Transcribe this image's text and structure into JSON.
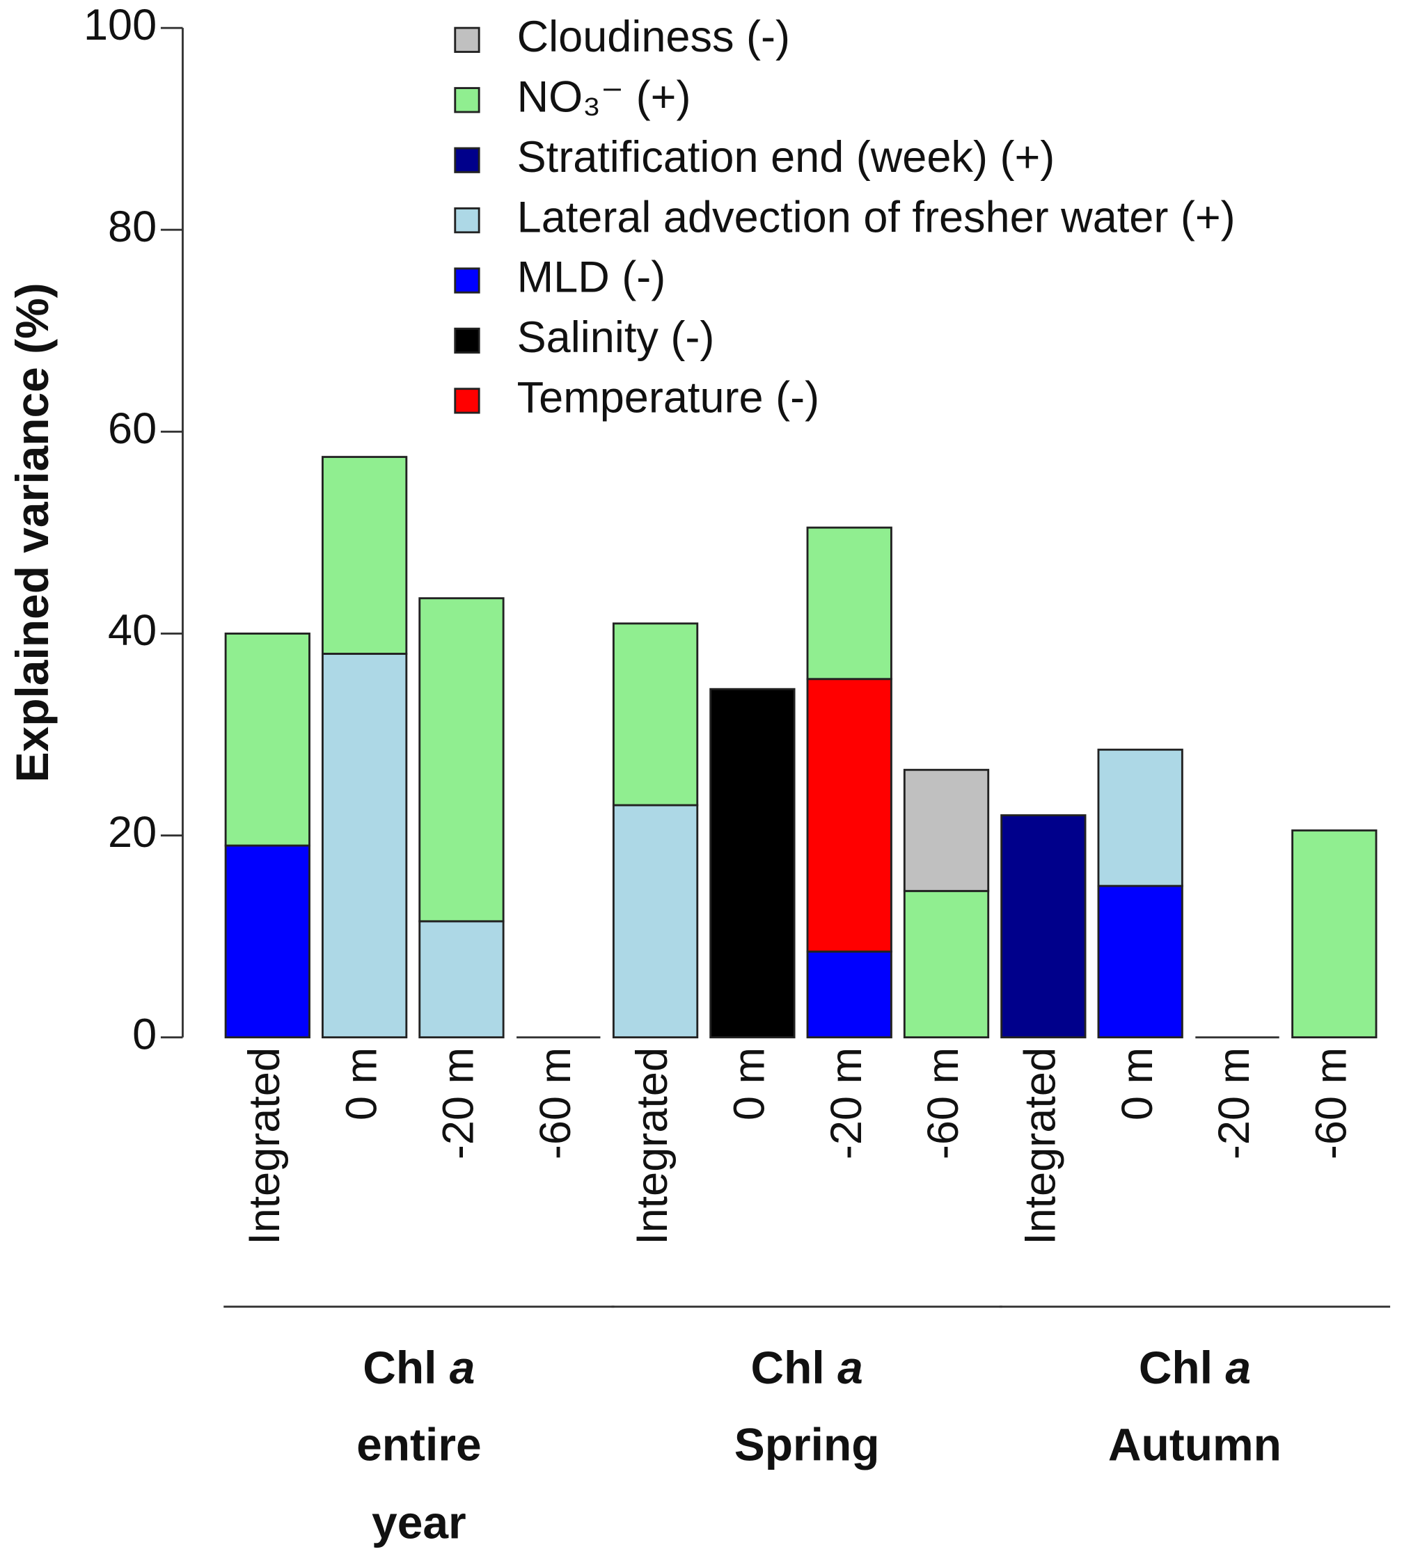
{
  "chart_data": {
    "type": "stacked_bar",
    "ylabel": "Explained variance (%)",
    "categories": [
      "Integrated",
      "0 m",
      "-20 m",
      "-60 m",
      "Integrated",
      "0 m",
      "-20 m",
      "-60 m",
      "Integrated",
      "0 m",
      "-20 m",
      "-60 m"
    ],
    "groups": [
      {
        "name": "Chl",
        "italic": "a",
        "lines": [
          "entire",
          "year"
        ]
      },
      {
        "name": "Chl",
        "italic": "a",
        "lines": [
          "Spring"
        ]
      },
      {
        "name": "Chl",
        "italic": "a",
        "lines": [
          "Autumn"
        ]
      }
    ],
    "series": [
      {
        "name": "Cloudiness (-)",
        "color": "#c0c0c0",
        "values": [
          null,
          null,
          null,
          null,
          null,
          null,
          null,
          12,
          null,
          null,
          null,
          null
        ]
      },
      {
        "name": "NO₃⁻ (+)",
        "color": "#90ee90",
        "values": [
          21,
          19.5,
          32,
          null,
          18,
          null,
          15,
          14.5,
          null,
          null,
          null,
          20.5
        ]
      },
      {
        "name": "Stratification end (week) (+)",
        "color": "#00008b",
        "values": [
          null,
          null,
          null,
          null,
          null,
          null,
          null,
          null,
          22,
          null,
          null,
          null
        ]
      },
      {
        "name": "Lateral advection of fresher water (+)",
        "color": "#add8e6",
        "values": [
          null,
          38,
          11.5,
          null,
          23,
          null,
          null,
          null,
          null,
          13.5,
          null,
          null
        ]
      },
      {
        "name": "MLD (-)",
        "color": "#0000ff",
        "values": [
          19,
          null,
          null,
          null,
          null,
          null,
          8.5,
          null,
          null,
          15,
          null,
          null
        ]
      },
      {
        "name": "Salinity (-)",
        "color": "#000000",
        "values": [
          null,
          null,
          null,
          null,
          null,
          34.5,
          null,
          null,
          null,
          null,
          null,
          null
        ]
      },
      {
        "name": "Temperature (-)",
        "color": "#ff0000",
        "values": [
          null,
          null,
          null,
          null,
          null,
          null,
          27,
          null,
          null,
          null,
          null,
          null
        ]
      }
    ],
    "ylim": [
      0,
      100
    ],
    "yticks": [
      0,
      20,
      40,
      60,
      80,
      100
    ],
    "grid": false
  }
}
